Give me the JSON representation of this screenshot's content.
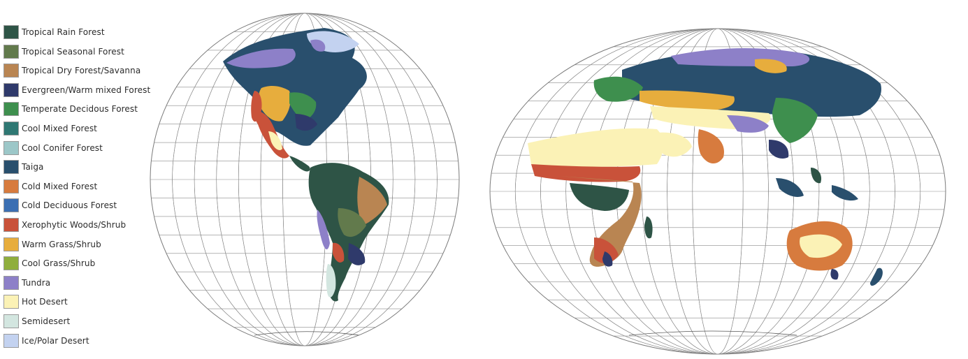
{
  "legend": {
    "items": [
      {
        "label": "Tropical Rain Forest",
        "color": "#2e5446"
      },
      {
        "label": "Tropical Seasonal Forest",
        "color": "#627a4c"
      },
      {
        "label": "Tropical Dry Forest/Savanna",
        "color": "#b98552"
      },
      {
        "label": "Evergreen/Warm mixed Forest",
        "color": "#2f3a6b"
      },
      {
        "label": "Temperate Decidous Forest",
        "color": "#3e8f4e"
      },
      {
        "label": "Cool Mixed Forest",
        "color": "#2f7873"
      },
      {
        "label": "Cool Conifer Forest",
        "color": "#9cc7c8"
      },
      {
        "label": "Taiga",
        "color": "#294f6d"
      },
      {
        "label": "Cold Mixed Forest",
        "color": "#d77b3e"
      },
      {
        "label": "Cold Deciduous Forest",
        "color": "#3b6fb3"
      },
      {
        "label": "Xerophytic Woods/Shrub",
        "color": "#c9523a"
      },
      {
        "label": "Warm Grass/Shrub",
        "color": "#e7ad3d"
      },
      {
        "label": "Cool Grass/Shrub",
        "color": "#8fae3d"
      },
      {
        "label": "Tundra",
        "color": "#8d80c8"
      },
      {
        "label": "Hot Desert",
        "color": "#fbf2b6"
      },
      {
        "label": "Semidesert",
        "color": "#d3e6e0"
      },
      {
        "label": "Ice/Polar Desert",
        "color": "#c3d2f0"
      }
    ]
  },
  "maps": {
    "americas": {
      "name": "americas"
    },
    "old_world": {
      "name": "old-world"
    }
  }
}
